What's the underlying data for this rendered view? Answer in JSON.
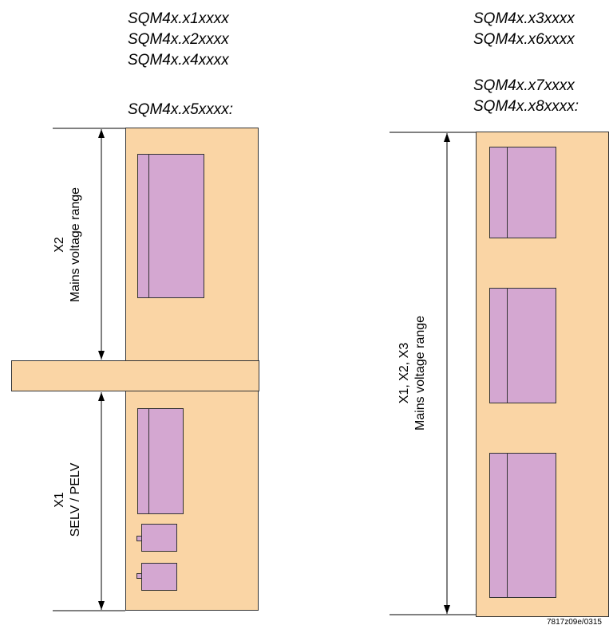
{
  "left_group": {
    "models": [
      "SQM4x.x1xxxx",
      "SQM4x.x2xxxx",
      "SQM4x.x4xxxx",
      "SQM4x.x5xxxx:"
    ],
    "zone_x2": {
      "terminal": "X2",
      "label": "Mains voltage range"
    },
    "zone_x1": {
      "terminal": "X1",
      "label": "SELV / PELV"
    }
  },
  "right_group": {
    "models": [
      "SQM4x.x3xxxx",
      "SQM4x.x6xxxx",
      "SQM4x.x7xxxx",
      "SQM4x.x8xxxx:"
    ],
    "zone": {
      "terminal": "X1, X2, X3",
      "label": "Mains voltage range"
    }
  },
  "reference": "7817z09e/0315",
  "colors": {
    "board": "#fad5a5",
    "module": "#d4a7d1",
    "line": "#000000"
  }
}
